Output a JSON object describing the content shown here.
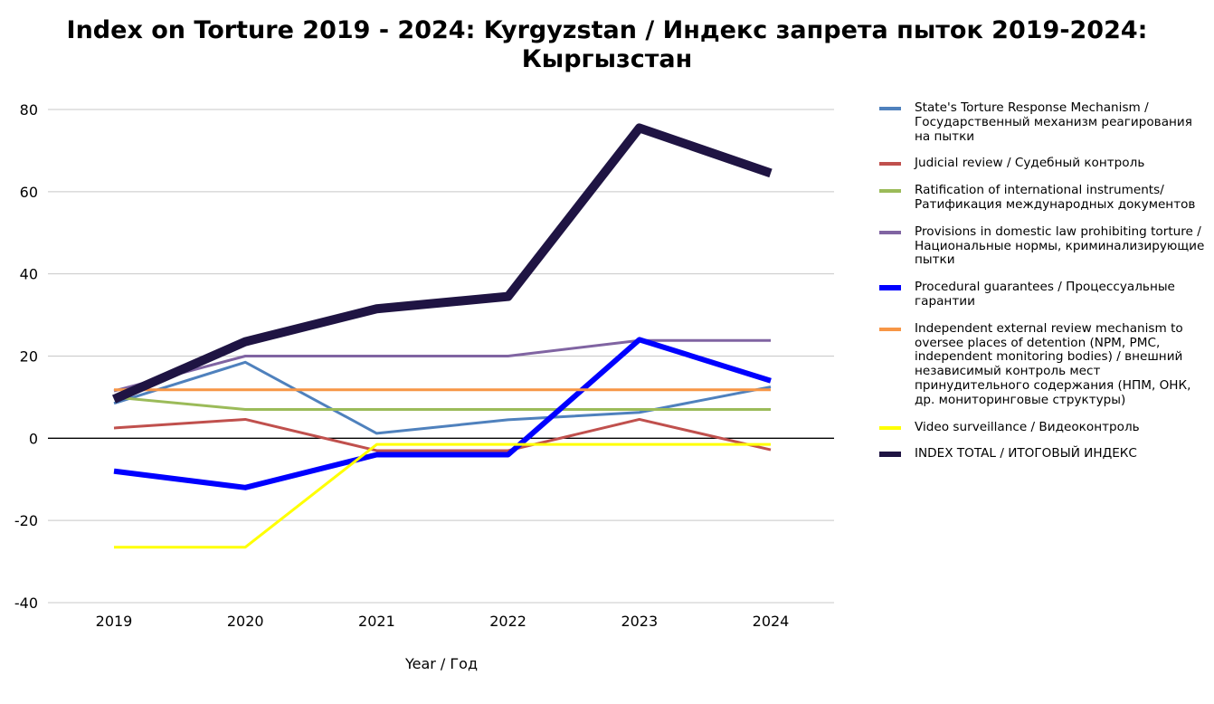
{
  "title": "Index on Torture 2019 - 2024: Kyrgyzstan / Индекс запрета пыток 2019-2024: Кыргызстан",
  "chart_data": {
    "type": "line",
    "title": "Index on Torture 2019 - 2024: Kyrgyzstan / Индекс запрета пыток 2019-2024: Кыргызстан",
    "xlabel": "Year / Год",
    "ylabel": "",
    "categories": [
      "2019",
      "2020",
      "2021",
      "2022",
      "2023",
      "2024"
    ],
    "ylim": [
      -40,
      80
    ],
    "yticks": [
      "80",
      "60",
      "40",
      "20",
      "0",
      "-20",
      "-40"
    ],
    "ytick_values": [
      80,
      60,
      40,
      20,
      0,
      -20,
      -40
    ],
    "grid": true,
    "legend_position": "right",
    "series": [
      {
        "name": "State's Torture Response Mechanism / Государственный механизм реагирования на пытки",
        "color": "#4f81bd",
        "values": [
          8.5,
          18.5,
          1.2,
          4.5,
          6.3,
          12.5
        ]
      },
      {
        "name": "Judicial review / Судебный контроль",
        "color": "#c0504d",
        "values": [
          2.5,
          4.6,
          -3,
          -3,
          4.6,
          -2.8
        ]
      },
      {
        "name": "Ratification of international instruments/ Ратификация международных документов",
        "color": "#9bbb59",
        "values": [
          10,
          7,
          7,
          7,
          7,
          7
        ]
      },
      {
        "name": "Provisions in domestic law prohibiting torture / Национальные нормы, криминализирующие пытки",
        "color": "#8064a2",
        "values": [
          11.5,
          20,
          20,
          20,
          23.8,
          23.8
        ]
      },
      {
        "name": "Procedural guarantees / Процессуальные гарантии",
        "color": "#0000ff",
        "values": [
          -8,
          -12,
          -4,
          -4,
          24,
          14
        ]
      },
      {
        "name": "Independent external review mechanism to oversee places of detention (NPM, PMC, independent monitoring bodies) / внешний независимый контроль мест принудительного содержания (НПМ, ОНК, др. мониторинговые структуры)",
        "color": "#f79646",
        "values": [
          11.8,
          11.8,
          11.8,
          11.8,
          11.8,
          11.8
        ]
      },
      {
        "name": "Video surveillance / Видеоконтроль",
        "color": "#ffff00",
        "values": [
          -26.5,
          -26.5,
          -1.5,
          -1.5,
          -1.5,
          -1.5
        ]
      },
      {
        "name": "INDEX TOTAL /  ИТОГОВЫЙ ИНДЕКС",
        "color": "#1f1443",
        "values": [
          9.5,
          23.5,
          31.5,
          34.5,
          75.5,
          64.5
        ]
      }
    ]
  }
}
